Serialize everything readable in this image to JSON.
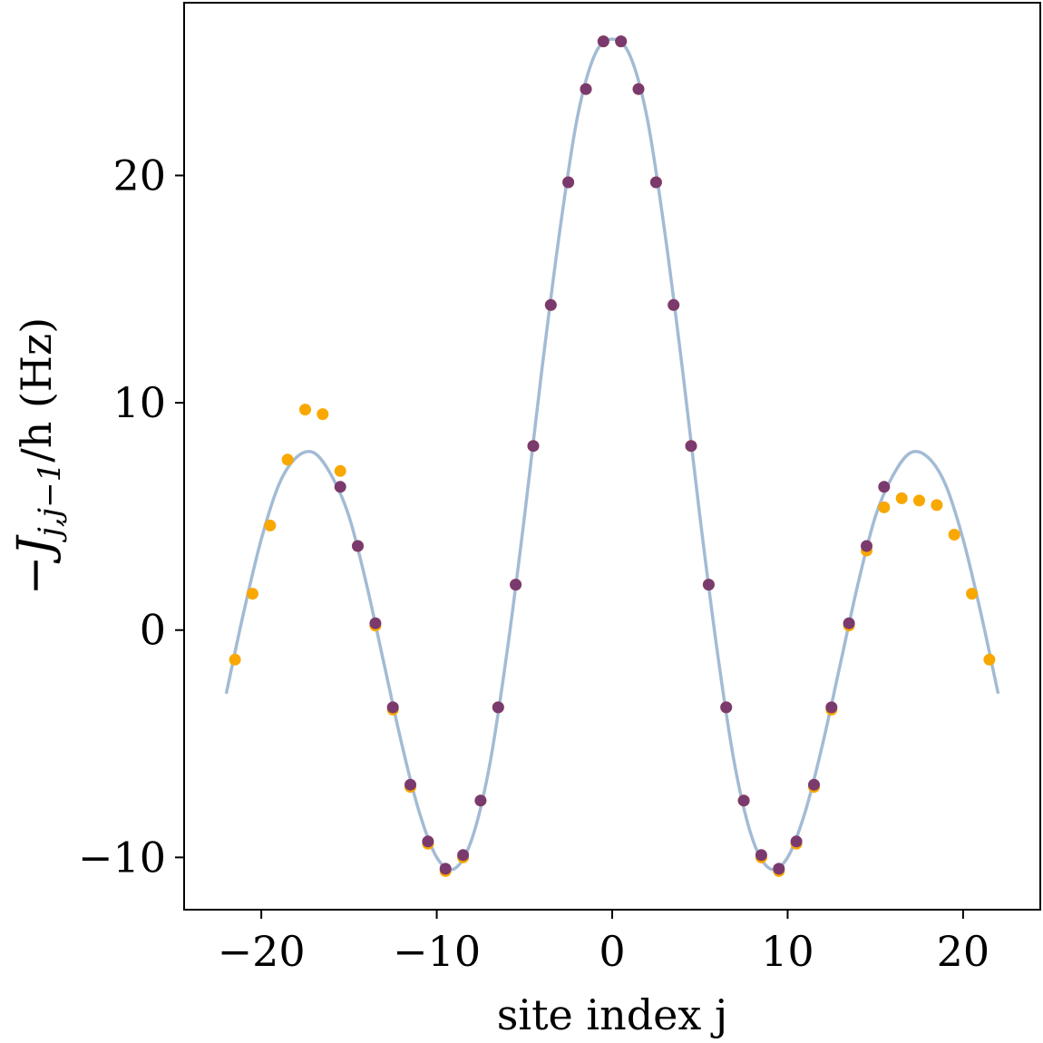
{
  "chart_data": {
    "type": "scatter",
    "xlabel": "site index j",
    "ylabel": "−J_{j,j−1}/h (Hz)",
    "ylabel_parts": {
      "main": "−J",
      "sub": "j,j−1",
      "rest": "/h (Hz)"
    },
    "xlim": [
      -24.4,
      24.4
    ],
    "ylim": [
      -12.3,
      27.6
    ],
    "xticks": [
      -20,
      -10,
      0,
      10,
      20
    ],
    "xtick_labels": [
      "−20",
      "−10",
      "0",
      "10",
      "20"
    ],
    "yticks": [
      -10,
      0,
      10,
      20
    ],
    "ytick_labels": [
      "−10",
      "0",
      "10",
      "20"
    ],
    "grid": false,
    "legend": "none",
    "colors": {
      "curve": "#a3bbd4",
      "orange": "#f8a800",
      "purple": "#7b3a6e"
    },
    "curve": {
      "x": [
        -22,
        -21,
        -20,
        -19,
        -18,
        -17,
        -16,
        -15,
        -14,
        -13,
        -12,
        -11,
        -10,
        -9,
        -8,
        -7,
        -6,
        -5,
        -4,
        -3,
        -2,
        -1,
        0,
        1,
        2,
        3,
        4,
        5,
        6,
        7,
        8,
        9,
        10,
        11,
        12,
        13,
        14,
        15,
        16,
        17,
        18,
        19,
        20,
        21,
        22
      ],
      "y": [
        -2.8,
        0.8,
        4.0,
        6.4,
        7.6,
        7.8,
        6.8,
        5.0,
        2.0,
        -1.5,
        -5.0,
        -8.0,
        -10.0,
        -10.5,
        -9.2,
        -6.0,
        -1.0,
        5.0,
        11.5,
        17.5,
        22.5,
        25.3,
        26.0,
        25.3,
        22.5,
        17.5,
        11.5,
        5.0,
        -1.0,
        -6.0,
        -9.2,
        -10.5,
        -10.0,
        -8.0,
        -5.0,
        -1.5,
        2.0,
        5.0,
        6.8,
        7.8,
        7.6,
        6.4,
        4.0,
        0.8,
        -2.8
      ]
    },
    "series": [
      {
        "x": [
          -21.5,
          -20.5,
          -19.5,
          -18.5,
          -17.5,
          -16.5,
          -15.5,
          -14.5,
          -13.5,
          -12.5,
          -11.5,
          -10.5,
          -9.5,
          -8.5,
          -7.5,
          -6.5,
          -5.5,
          -4.5,
          -3.5,
          -2.5,
          -1.5,
          -0.5,
          0.5,
          1.5,
          2.5,
          3.5,
          4.5,
          5.5,
          6.5,
          7.5,
          8.5,
          9.5,
          10.5,
          11.5,
          12.5,
          13.5,
          14.5,
          15.5,
          16.5,
          17.5,
          18.5,
          19.5,
          20.5,
          21.5
        ],
        "y": [
          -1.3,
          1.6,
          4.6,
          7.5,
          9.7,
          9.5,
          7.0,
          3.7,
          0.2,
          -3.5,
          -6.9,
          -9.4,
          -10.6,
          -10.0,
          -7.5,
          -3.4,
          2.0,
          8.1,
          14.3,
          19.7,
          23.8,
          25.9,
          25.9,
          23.8,
          19.7,
          14.3,
          8.1,
          2.0,
          -3.4,
          -7.5,
          -10.0,
          -10.6,
          -9.4,
          -6.9,
          -3.5,
          0.2,
          3.5,
          5.4,
          5.8,
          5.7,
          5.5,
          4.2,
          1.6,
          -1.3
        ]
      },
      {
        "x": [
          -15.5,
          -14.5,
          -13.5,
          -12.5,
          -11.5,
          -10.5,
          -9.5,
          -8.5,
          -7.5,
          -6.5,
          -5.5,
          -4.5,
          -3.5,
          -2.5,
          -1.5,
          -0.5,
          0.5,
          1.5,
          2.5,
          3.5,
          4.5,
          5.5,
          6.5,
          7.5,
          8.5,
          9.5,
          10.5,
          11.5,
          12.5,
          13.5,
          14.5,
          15.5
        ],
        "y": [
          6.3,
          3.7,
          0.3,
          -3.4,
          -6.8,
          -9.3,
          -10.5,
          -9.9,
          -7.5,
          -3.4,
          2.0,
          8.1,
          14.3,
          19.7,
          23.8,
          25.9,
          25.9,
          23.8,
          19.7,
          14.3,
          8.1,
          2.0,
          -3.4,
          -7.5,
          -9.9,
          -10.5,
          -9.3,
          -6.8,
          -3.4,
          0.3,
          3.7,
          6.3
        ]
      }
    ]
  }
}
